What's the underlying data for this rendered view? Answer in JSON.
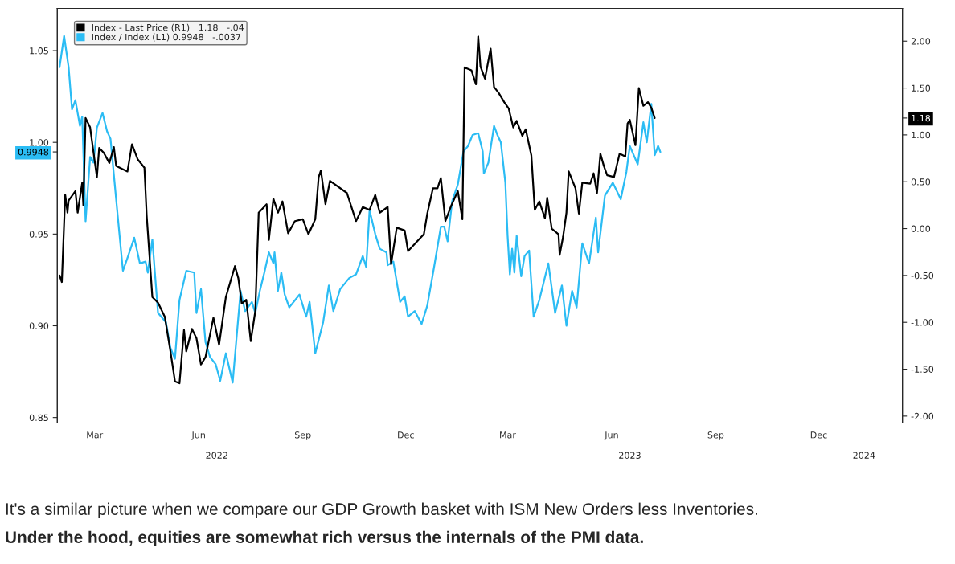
{
  "chart_data": {
    "type": "line",
    "xlim": [
      "2022-02-10",
      "2024-02-27"
    ],
    "xticks": [
      {
        "value": "2022-03-15",
        "label": "Mar"
      },
      {
        "value": "2022-06-15",
        "label": "Jun"
      },
      {
        "value": "2022-09-15",
        "label": "Sep"
      },
      {
        "value": "2022-12-15",
        "label": "Dec"
      },
      {
        "value": "2023-03-15",
        "label": "Mar"
      },
      {
        "value": "2023-06-15",
        "label": "Jun"
      },
      {
        "value": "2023-09-15",
        "label": "Sep"
      },
      {
        "value": "2023-12-15",
        "label": "Dec"
      }
    ],
    "x2lim": [
      "2022-02-10",
      "2024-02-27"
    ],
    "x2ticks": [
      {
        "value": "2022-07-01",
        "label": "2022"
      },
      {
        "value": "2023-07-01",
        "label": "2023"
      },
      {
        "value": "2024-01-24",
        "label": "2024"
      }
    ],
    "ylim": [
      0.847,
      1.073
    ],
    "yticks": [
      {
        "value": 0.85,
        "label": "0.85"
      },
      {
        "value": 0.9,
        "label": "0.90"
      },
      {
        "value": 0.95,
        "label": "0.95"
      },
      {
        "value": 1.0,
        "label": "1.00"
      },
      {
        "value": 1.05,
        "label": "1.05"
      },
      {
        "value": 0.9948,
        "label": "0.9948"
      }
    ],
    "y2lim": [
      -2.074,
      2.349
    ],
    "y2ticks": [
      {
        "value": -2.0,
        "label": "-2.00"
      },
      {
        "value": -1.5,
        "label": "-1.50"
      },
      {
        "value": -1.0,
        "label": "-1.00"
      },
      {
        "value": -0.5,
        "label": "-0.50"
      },
      {
        "value": 0.0,
        "label": "0.00"
      },
      {
        "value": 0.5,
        "label": "0.50"
      },
      {
        "value": 1.0,
        "label": "1.00"
      },
      {
        "value": 1.5,
        "label": "1.50"
      },
      {
        "value": 2.0,
        "label": "2.00"
      },
      {
        "value": 1.18,
        "label": "1.18"
      }
    ],
    "legend": "top left",
    "grid": false,
    "annotations": [
      "It's a similar picture when we compare our GDP Growth basket with ISM New Orders less Inventories.",
      "Under the hood, equities are somewhat rich versus the internals of the PMI data."
    ],
    "series": [
      {
        "name": "Index - Last Price (R1)   1.18   -.04",
        "color": "#000000",
        "axis": "y2",
        "x": [
          "2022-02-12",
          "2022-02-14",
          "2022-02-17",
          "2022-02-19",
          "2022-02-20",
          "2022-02-26",
          "2022-02-28",
          "2022-03-04",
          "2022-03-05",
          "2022-03-07",
          "2022-03-11",
          "2022-03-17",
          "2022-03-19",
          "2022-03-23",
          "2022-03-28",
          "2022-04-01",
          "2022-04-03",
          "2022-04-13",
          "2022-04-17",
          "2022-04-22",
          "2022-04-28",
          "2022-04-30",
          "2022-05-05",
          "2022-05-10",
          "2022-05-16",
          "2022-05-21",
          "2022-05-25",
          "2022-05-29",
          "2022-06-02",
          "2022-06-04",
          "2022-06-09",
          "2022-06-13",
          "2022-06-17",
          "2022-06-21",
          "2022-06-28",
          "2022-07-03",
          "2022-07-09",
          "2022-07-17",
          "2022-07-20",
          "2022-07-23",
          "2022-07-27",
          "2022-07-31",
          "2022-08-04",
          "2022-08-07",
          "2022-08-14",
          "2022-08-16",
          "2022-08-20",
          "2022-08-24",
          "2022-08-28",
          "2022-09-02",
          "2022-09-08",
          "2022-09-15",
          "2022-09-20",
          "2022-09-26",
          "2022-09-29",
          "2022-10-01",
          "2022-10-05",
          "2022-10-09",
          "2022-10-24",
          "2022-11-01",
          "2022-11-07",
          "2022-11-13",
          "2022-11-18",
          "2022-11-22",
          "2022-11-29",
          "2022-12-02",
          "2022-12-07",
          "2022-12-14",
          "2022-12-17",
          "2022-12-31",
          "2023-01-03",
          "2023-01-08",
          "2023-01-12",
          "2023-01-15",
          "2023-01-19",
          "2023-01-24",
          "2023-01-30",
          "2023-02-03",
          "2023-02-05",
          "2023-02-11",
          "2023-02-15",
          "2023-02-17",
          "2023-02-19",
          "2023-02-23",
          "2023-02-28",
          "2023-03-03",
          "2023-03-07",
          "2023-03-12",
          "2023-03-16",
          "2023-03-20",
          "2023-03-23",
          "2023-03-28",
          "2023-03-31",
          "2023-04-05",
          "2023-04-08",
          "2023-04-12",
          "2023-04-17",
          "2023-04-19",
          "2023-04-23",
          "2023-04-29",
          "2023-04-30",
          "2023-05-03",
          "2023-05-06",
          "2023-05-08",
          "2023-05-14",
          "2023-05-17",
          "2023-05-20",
          "2023-05-27",
          "2023-05-30",
          "2023-06-02",
          "2023-06-05",
          "2023-06-08",
          "2023-06-11",
          "2023-06-17",
          "2023-06-22",
          "2023-06-27",
          "2023-06-29",
          "2023-07-01",
          "2023-07-06",
          "2023-07-09",
          "2023-07-13",
          "2023-07-17",
          "2023-07-20",
          "2023-07-23"
        ],
        "values": [
          -0.5,
          -0.57,
          0.36,
          0.17,
          0.3,
          0.4,
          0.17,
          0.49,
          0.25,
          1.18,
          1.08,
          0.55,
          0.86,
          0.81,
          0.7,
          0.87,
          0.67,
          0.61,
          0.9,
          0.74,
          0.65,
          0.14,
          -0.73,
          -0.79,
          -0.94,
          -1.31,
          -1.63,
          -1.65,
          -1.08,
          -1.31,
          -1.07,
          -1.17,
          -1.45,
          -1.37,
          -0.95,
          -1.24,
          -0.73,
          -0.4,
          -0.53,
          -0.8,
          -0.76,
          -1.2,
          -0.88,
          0.17,
          0.26,
          -0.12,
          0.32,
          0.17,
          0.29,
          -0.05,
          0.08,
          0.1,
          -0.06,
          0.1,
          0.55,
          0.62,
          0.26,
          0.51,
          0.38,
          0.08,
          0.23,
          0.2,
          0.36,
          0.17,
          0.23,
          -0.38,
          0.01,
          -0.02,
          -0.24,
          -0.06,
          0.16,
          0.43,
          0.43,
          0.54,
          0.08,
          0.24,
          0.4,
          0.1,
          1.72,
          1.69,
          1.54,
          2.05,
          1.73,
          1.6,
          1.92,
          1.51,
          1.45,
          1.35,
          1.28,
          1.08,
          1.15,
          0.99,
          1.06,
          0.78,
          0.2,
          0.29,
          0.11,
          0.33,
          0.0,
          -0.06,
          -0.28,
          -0.09,
          0.17,
          0.61,
          0.43,
          0.16,
          0.49,
          0.48,
          0.59,
          0.38,
          0.8,
          0.67,
          0.57,
          0.55,
          0.8,
          0.77,
          1.12,
          1.16,
          0.89,
          1.5,
          1.31,
          1.35,
          1.29,
          1.18
        ],
        "value_labels": [
          null,
          null,
          null,
          null,
          null,
          null,
          null,
          null,
          null,
          null,
          null,
          null,
          null,
          null,
          null,
          null,
          null,
          null,
          null,
          null,
          null,
          null,
          null,
          null,
          null,
          null,
          null,
          null,
          null,
          null,
          null,
          null,
          null,
          null,
          null,
          null,
          null,
          null,
          null,
          null,
          null,
          null,
          null,
          null,
          null,
          null,
          null,
          null,
          null,
          null,
          null,
          null,
          null,
          null,
          null,
          null,
          null,
          null,
          null,
          null,
          null,
          null,
          null,
          null,
          null,
          null,
          null,
          null,
          null,
          null,
          null,
          null,
          null,
          null,
          null,
          null,
          null,
          null,
          null,
          null,
          null,
          null,
          null,
          null,
          null,
          null,
          null,
          null,
          null,
          null,
          null,
          null,
          null,
          null,
          null,
          null,
          null,
          null,
          null,
          null,
          null,
          null,
          null,
          null,
          null,
          null,
          null,
          null,
          null,
          null,
          null,
          null,
          null,
          null,
          null,
          null,
          null,
          null,
          null,
          null,
          null,
          null,
          null,
          null
        ]
      },
      {
        "name": "Index / Index (L1) 0.9948   -.0037",
        "color": "#2bbcf4",
        "axis": "y",
        "x": [
          "2022-02-12",
          "2022-02-16",
          "2022-02-20",
          "2022-02-23",
          "2022-02-26",
          "2022-03-02",
          "2022-03-04",
          "2022-03-07",
          "2022-03-11",
          "2022-03-14",
          "2022-03-17",
          "2022-03-22",
          "2022-03-26",
          "2022-03-29",
          "2022-04-03",
          "2022-04-09",
          "2022-04-13",
          "2022-04-19",
          "2022-04-24",
          "2022-04-29",
          "2022-05-01",
          "2022-05-05",
          "2022-05-10",
          "2022-05-17",
          "2022-05-21",
          "2022-05-25",
          "2022-05-29",
          "2022-06-04",
          "2022-06-11",
          "2022-06-13",
          "2022-06-17",
          "2022-06-21",
          "2022-06-25",
          "2022-06-30",
          "2022-07-04",
          "2022-07-09",
          "2022-07-15",
          "2022-07-22",
          "2022-07-26",
          "2022-08-01",
          "2022-08-04",
          "2022-08-08",
          "2022-08-12",
          "2022-08-16",
          "2022-08-20",
          "2022-08-21",
          "2022-08-24",
          "2022-08-27",
          "2022-08-30",
          "2022-09-03",
          "2022-09-12",
          "2022-09-18",
          "2022-09-21",
          "2022-09-26",
          "2022-10-03",
          "2022-10-08",
          "2022-10-12",
          "2022-10-18",
          "2022-10-26",
          "2022-11-01",
          "2022-11-07",
          "2022-11-10",
          "2022-11-13",
          "2022-11-18",
          "2022-11-22",
          "2022-11-28",
          "2022-11-29",
          "2022-12-04",
          "2022-12-10",
          "2022-12-14",
          "2022-12-17",
          "2022-12-23",
          "2022-12-29",
          "2023-01-03",
          "2023-01-09",
          "2023-01-15",
          "2023-01-18",
          "2023-01-21",
          "2023-01-25",
          "2023-01-30",
          "2023-02-04",
          "2023-02-08",
          "2023-02-12",
          "2023-02-17",
          "2023-02-21",
          "2023-02-22",
          "2023-02-26",
          "2023-03-03",
          "2023-03-06",
          "2023-03-09",
          "2023-03-13",
          "2023-03-15",
          "2023-03-17",
          "2023-03-19",
          "2023-03-21",
          "2023-03-23",
          "2023-03-27",
          "2023-03-30",
          "2023-04-03",
          "2023-04-07",
          "2023-04-12",
          "2023-04-20",
          "2023-04-26",
          "2023-05-02",
          "2023-05-06",
          "2023-05-11",
          "2023-05-15",
          "2023-05-20",
          "2023-05-26",
          "2023-06-01",
          "2023-06-03",
          "2023-06-09",
          "2023-06-16",
          "2023-06-23",
          "2023-06-28",
          "2023-07-01",
          "2023-07-08",
          "2023-07-13",
          "2023-07-16",
          "2023-07-20",
          "2023-07-23",
          "2023-07-26",
          "2023-07-28"
        ],
        "values": [
          1.041,
          1.058,
          1.041,
          1.018,
          1.023,
          1.009,
          1.014,
          0.957,
          0.992,
          0.989,
          1.008,
          1.016,
          1.006,
          1.002,
          0.969,
          0.93,
          0.937,
          0.948,
          0.934,
          0.935,
          0.929,
          0.947,
          0.907,
          0.902,
          0.888,
          0.882,
          0.914,
          0.93,
          0.929,
          0.907,
          0.92,
          0.891,
          0.883,
          0.879,
          0.87,
          0.885,
          0.869,
          0.919,
          0.908,
          0.913,
          0.907,
          0.919,
          0.929,
          0.94,
          0.934,
          0.94,
          0.919,
          0.929,
          0.917,
          0.91,
          0.917,
          0.905,
          0.913,
          0.885,
          0.902,
          0.922,
          0.908,
          0.92,
          0.926,
          0.928,
          0.938,
          0.932,
          0.963,
          0.95,
          0.942,
          0.94,
          0.933,
          0.935,
          0.913,
          0.916,
          0.905,
          0.908,
          0.901,
          0.911,
          0.932,
          0.954,
          0.954,
          0.946,
          0.968,
          0.977,
          0.995,
          0.998,
          1.004,
          1.005,
          0.995,
          0.983,
          0.989,
          1.009,
          1.004,
          1.0,
          0.978,
          0.949,
          0.928,
          0.942,
          0.929,
          0.949,
          0.927,
          0.938,
          0.941,
          0.905,
          0.914,
          0.934,
          0.907,
          0.922,
          0.9,
          0.919,
          0.91,
          0.945,
          0.934,
          0.959,
          0.94,
          0.971,
          0.978,
          0.969,
          0.984,
          0.998,
          0.988,
          1.011,
          1.0,
          1.021,
          0.993,
          0.998,
          0.9948
        ],
        "value_labels": [
          null,
          null,
          null,
          null,
          null,
          null,
          null,
          null,
          null,
          null,
          null,
          null,
          null,
          null,
          null,
          null,
          null,
          null,
          null,
          null,
          null,
          null,
          null,
          null,
          null,
          null,
          null,
          null,
          null,
          null,
          null,
          null,
          null,
          null,
          null,
          null,
          null,
          null,
          null,
          null,
          null,
          null,
          null,
          null,
          null,
          null,
          null,
          null,
          null,
          null,
          null,
          null,
          null,
          null,
          null,
          null,
          null,
          null,
          null,
          null,
          null,
          null,
          null,
          null,
          null,
          null,
          null,
          null,
          null,
          null,
          null,
          null,
          null,
          null,
          null,
          null,
          null,
          null,
          null,
          null,
          null,
          null,
          null,
          null,
          null,
          null,
          null,
          null,
          null,
          null,
          null,
          null,
          null,
          null,
          null,
          null,
          null,
          null,
          null,
          null,
          null,
          null,
          null,
          null,
          null,
          null,
          null,
          null,
          null,
          null,
          null,
          null,
          null,
          null,
          null,
          null,
          null,
          null,
          null,
          null,
          null,
          null,
          null
        ]
      }
    ]
  }
}
